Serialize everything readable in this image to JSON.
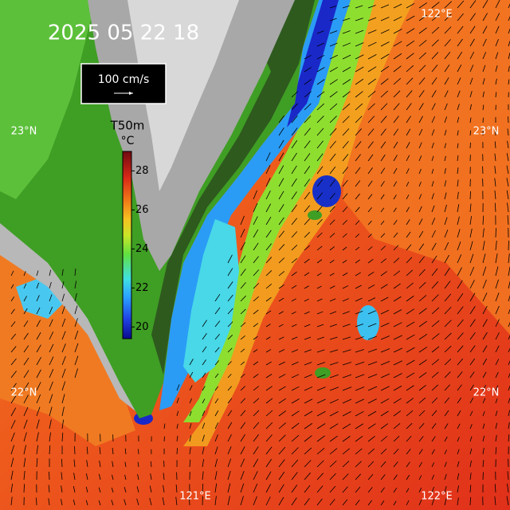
{
  "header": {
    "timestamp": "2025 05 22 18"
  },
  "scale_box": {
    "label": "100 cm/s"
  },
  "colorbar": {
    "title": "T50m",
    "unit": "°C",
    "lim": [
      19.4,
      29.0
    ],
    "ticks": [
      20,
      22,
      24,
      26,
      28
    ]
  },
  "grid_labels": {
    "lat": [
      "23°N",
      "22°N"
    ],
    "lon": [
      "121°E",
      "122°E"
    ]
  }
}
